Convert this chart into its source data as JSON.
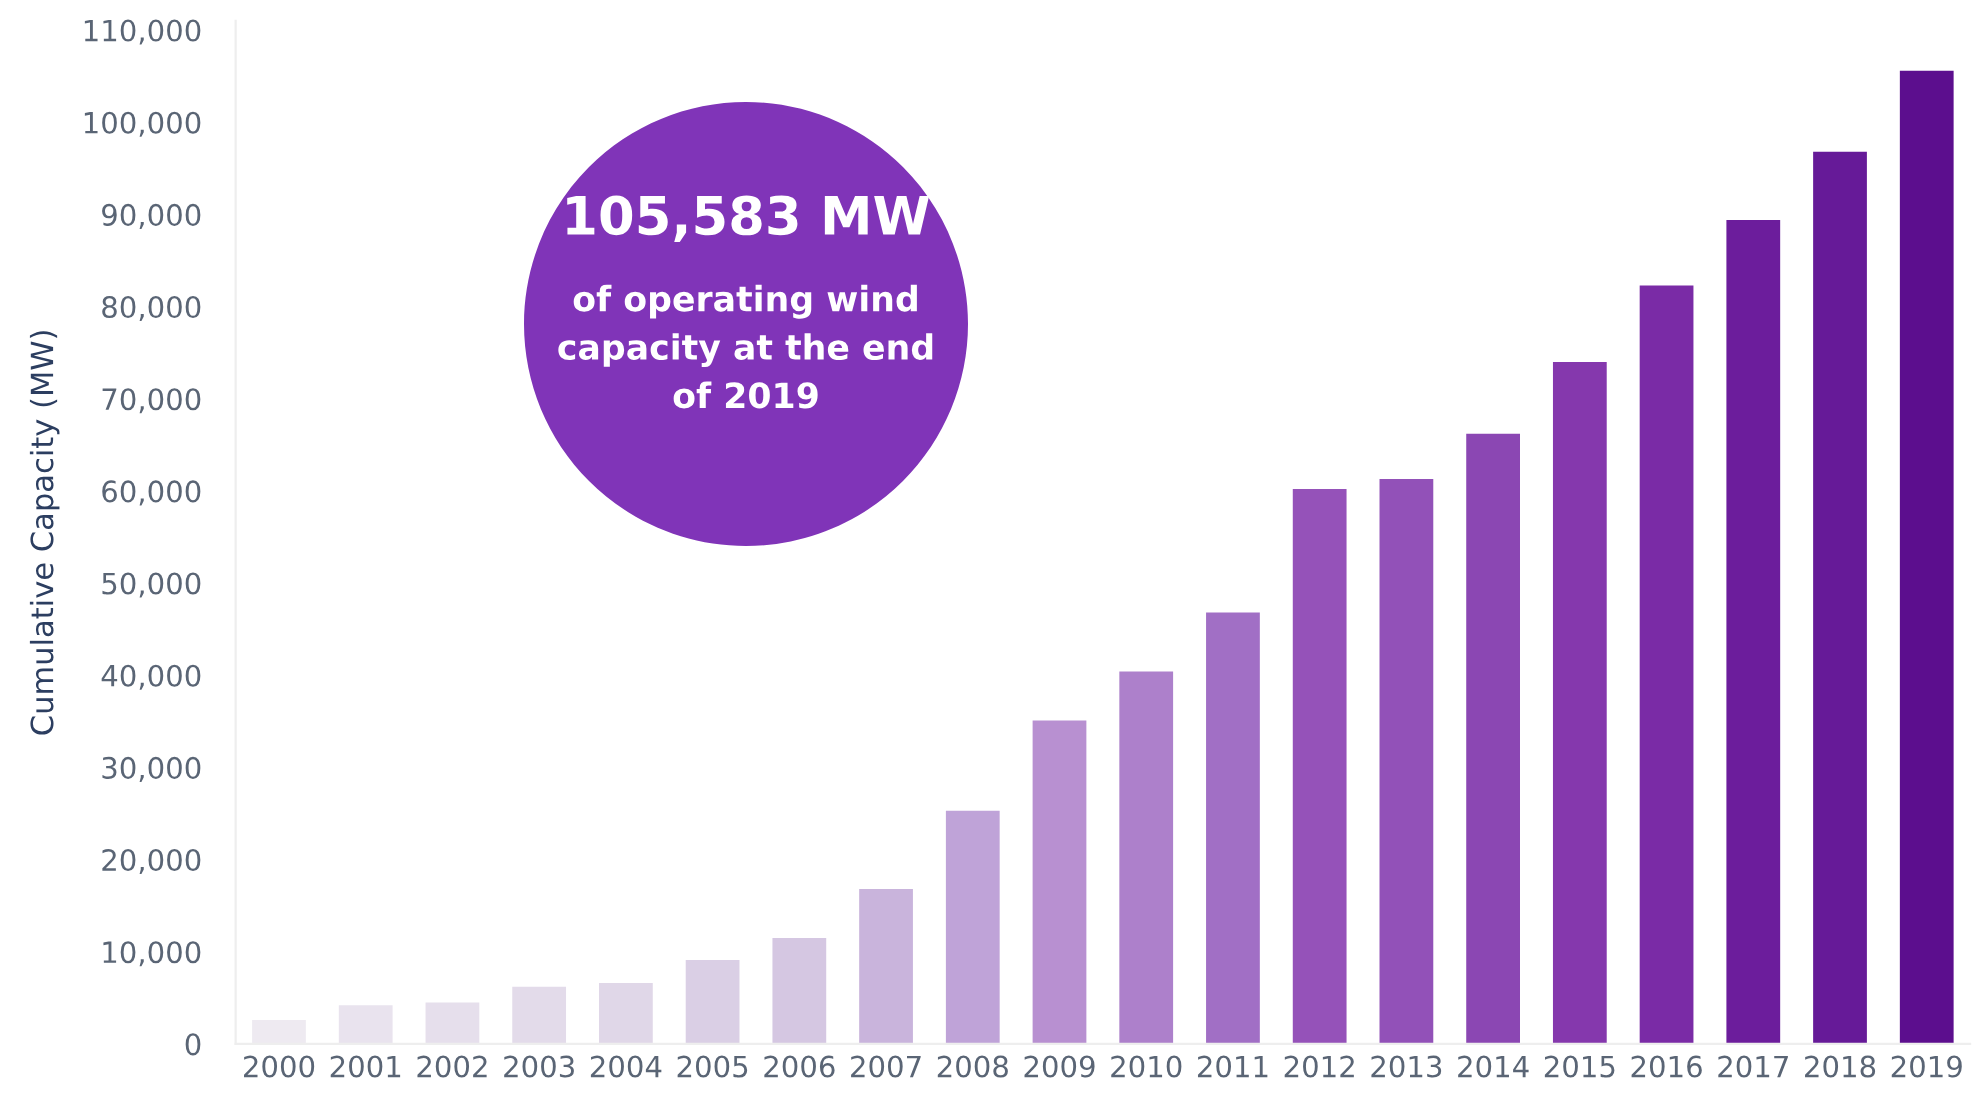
{
  "chart_data": {
    "type": "bar",
    "ylabel": "Cumulative Capacity (MW)",
    "categories": [
      "2000",
      "2001",
      "2002",
      "2003",
      "2004",
      "2005",
      "2006",
      "2007",
      "2008",
      "2009",
      "2010",
      "2011",
      "2012",
      "2013",
      "2014",
      "2015",
      "2016",
      "2017",
      "2018",
      "2019"
    ],
    "values": [
      2600,
      4200,
      4500,
      6200,
      6600,
      9100,
      11500,
      16800,
      25300,
      35100,
      40400,
      46800,
      60200,
      61300,
      66200,
      74000,
      82300,
      89400,
      96800,
      105583
    ],
    "colors": [
      "#eeeaf1",
      "#e9e3ee",
      "#e6dfec",
      "#e3dbea",
      "#e0d7e8",
      "#dacfe5",
      "#d5c7e2",
      "#c9b4dc",
      "#bfa3d8",
      "#b890d1",
      "#ad80cb",
      "#a16fc5",
      "#9552b9",
      "#9251b8",
      "#8b47b3",
      "#8538ad",
      "#7a2ba6",
      "#6c1d9c",
      "#661a98",
      "#5c0e8e"
    ],
    "ylim": [
      0,
      111000
    ],
    "yticks": [
      {
        "value": 0,
        "label": "0"
      },
      {
        "value": 10000,
        "label": "10,000"
      },
      {
        "value": 20000,
        "label": "20,000"
      },
      {
        "value": 30000,
        "label": "30,000"
      },
      {
        "value": 40000,
        "label": "40,000"
      },
      {
        "value": 50000,
        "label": "50,000"
      },
      {
        "value": 60000,
        "label": "60,000"
      },
      {
        "value": 70000,
        "label": "70,000"
      },
      {
        "value": 80000,
        "label": "80,000"
      },
      {
        "value": 90000,
        "label": "90,000"
      },
      {
        "value": 100000,
        "label": "100,000"
      },
      {
        "value": 110000,
        "label": "110,000"
      }
    ],
    "grid": false,
    "annotations": [
      "105,583 MW",
      "of operating wind\ncapacity at the end\nof 2019"
    ]
  }
}
